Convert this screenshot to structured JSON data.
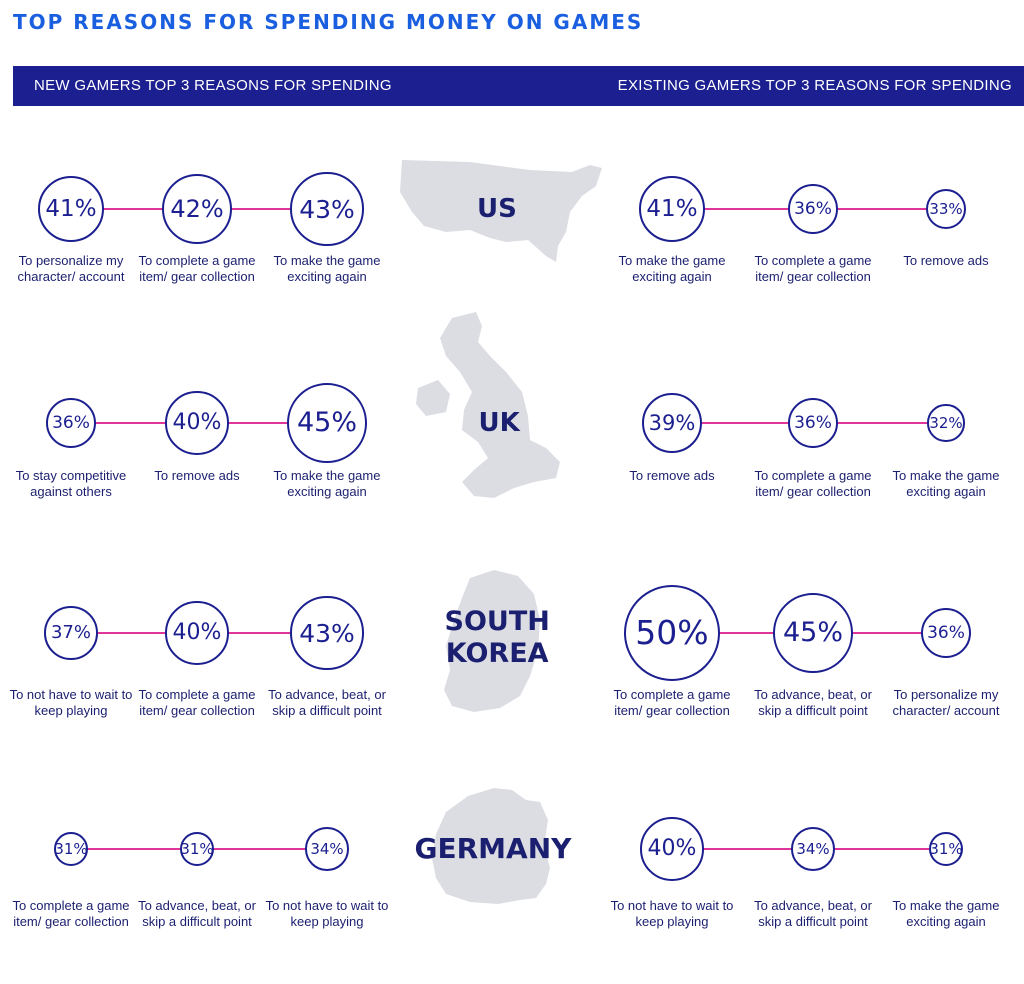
{
  "title": "TOP REASONS FOR SPENDING MONEY ON GAMES",
  "banner": {
    "left": "NEW GAMERS TOP 3 REASONS FOR SPENDING",
    "right": "EXISTING GAMERS TOP 3 REASONS FOR SPENDING"
  },
  "colors": {
    "title": "#1a5fe0",
    "banner": "#1b1f8f",
    "circle": "#1b1f8f",
    "connector": "#e0359a",
    "map": "#dcdde3"
  },
  "chart_data": {
    "type": "bubble-infographic",
    "unit": "%",
    "groups": [
      {
        "country": "US",
        "new_gamers": [
          {
            "value": 41,
            "label": "41%",
            "reason": "To personalize my character/ account"
          },
          {
            "value": 42,
            "label": "42%",
            "reason": "To complete a game item/ gear collection"
          },
          {
            "value": 43,
            "label": "43%",
            "reason": "To make the game exciting again"
          }
        ],
        "existing_gamers": [
          {
            "value": 41,
            "label": "41%",
            "reason": "To make the game exciting again"
          },
          {
            "value": 36,
            "label": "36%",
            "reason": "To complete a game item/ gear collection"
          },
          {
            "value": 33,
            "label": "33%",
            "reason": "To remove ads"
          }
        ]
      },
      {
        "country": "UK",
        "new_gamers": [
          {
            "value": 36,
            "label": "36%",
            "reason": "To stay competitive against others"
          },
          {
            "value": 40,
            "label": "40%",
            "reason": "To remove ads"
          },
          {
            "value": 45,
            "label": "45%",
            "reason": "To make the game exciting again"
          }
        ],
        "existing_gamers": [
          {
            "value": 39,
            "label": "39%",
            "reason": "To remove ads"
          },
          {
            "value": 36,
            "label": "36%",
            "reason": "To complete a game item/ gear collection"
          },
          {
            "value": 32,
            "label": "32%",
            "reason": "To make the game exciting again"
          }
        ]
      },
      {
        "country": "SOUTH KOREA",
        "new_gamers": [
          {
            "value": 37,
            "label": "37%",
            "reason": "To not have to wait to keep playing"
          },
          {
            "value": 40,
            "label": "40%",
            "reason": "To complete a game item/ gear collection"
          },
          {
            "value": 43,
            "label": "43%",
            "reason": "To advance, beat, or skip a difficult point"
          }
        ],
        "existing_gamers": [
          {
            "value": 50,
            "label": "50%",
            "reason": "To complete a game item/ gear collection"
          },
          {
            "value": 45,
            "label": "45%",
            "reason": "To advance, beat, or skip a difficult point"
          },
          {
            "value": 36,
            "label": "36%",
            "reason": "To personalize my character/ account"
          }
        ]
      },
      {
        "country": "GERMANY",
        "new_gamers": [
          {
            "value": 31,
            "label": "31%",
            "reason": "To complete a game item/ gear collection"
          },
          {
            "value": 31,
            "label": "31%",
            "reason": "To advance, beat, or skip a difficult point"
          },
          {
            "value": 34,
            "label": "34%",
            "reason": "To not have to wait to keep playing"
          }
        ],
        "existing_gamers": [
          {
            "value": 40,
            "label": "40%",
            "reason": "To not have to wait to keep playing"
          },
          {
            "value": 34,
            "label": "34%",
            "reason": "To advance, beat, or skip a difficult point"
          },
          {
            "value": 31,
            "label": "31%",
            "reason": "To make the game exciting again"
          }
        ]
      }
    ]
  }
}
